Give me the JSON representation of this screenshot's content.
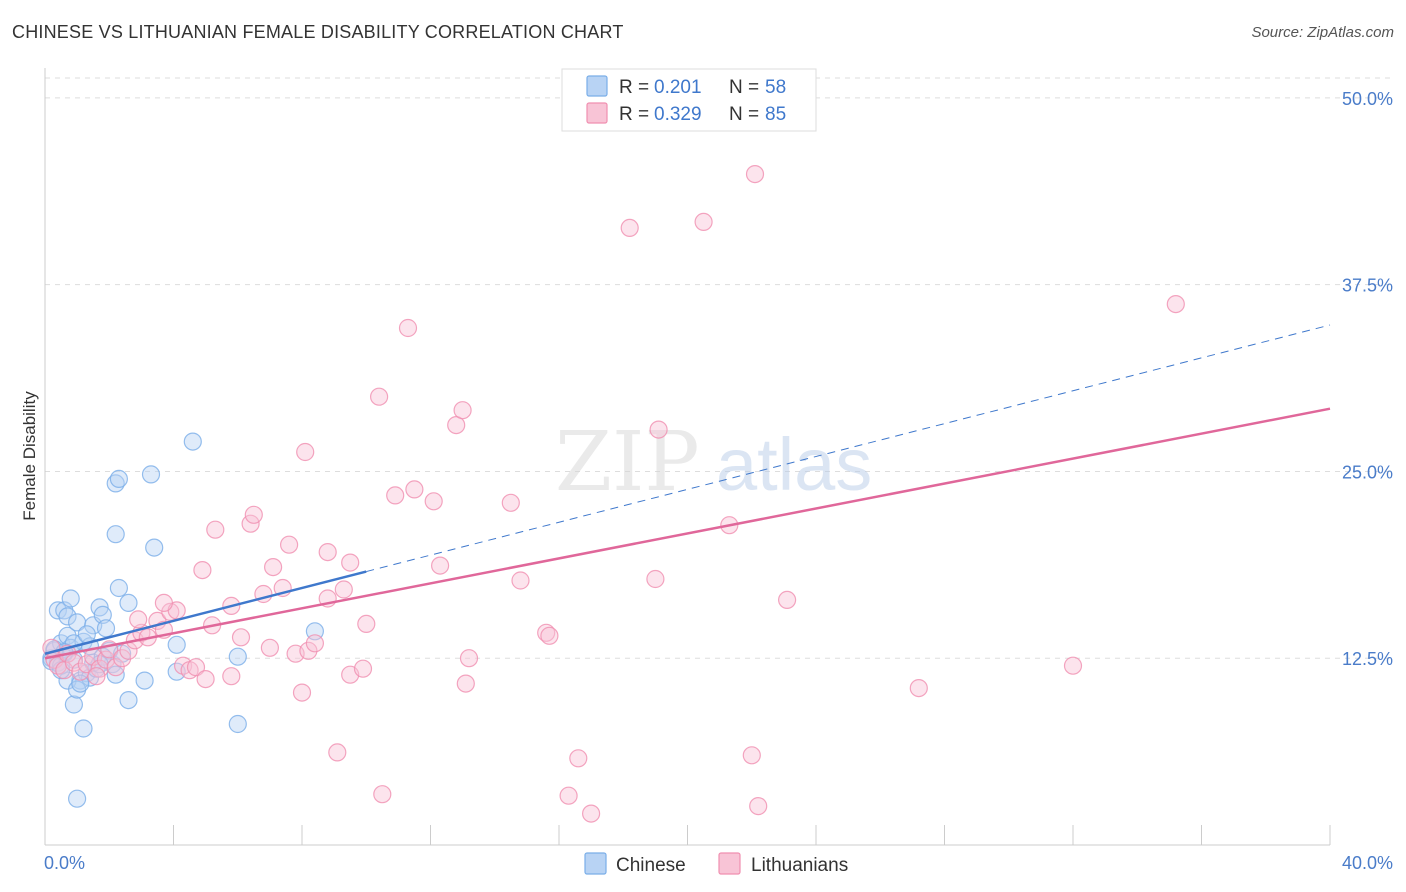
{
  "title": "CHINESE VS LITHUANIAN FEMALE DISABILITY CORRELATION CHART",
  "source": "Source: ZipAtlas.com",
  "watermark": {
    "zip": "ZIP",
    "atlas": "atlas"
  },
  "colors": {
    "chinese": "#7aaee8",
    "chinese_fill": "#b8d3f4",
    "chinese_line": "#3f78cc",
    "lithuanian": "#f08fb0",
    "lithuanian_fill": "#f8c4d6",
    "lithuanian_line": "#e0679a",
    "tick_text": "#4a7cc9",
    "grid": "#dddddd"
  },
  "legend": {
    "r_label": "R =",
    "n_label": "N =",
    "rows": [
      {
        "r": "0.201",
        "n": "58"
      },
      {
        "r": "0.329",
        "n": "85"
      }
    ]
  },
  "chart_data": {
    "type": "scatter",
    "xlabel": "",
    "ylabel": "Female Disability",
    "xlim": [
      0,
      40
    ],
    "ylim": [
      0,
      52
    ],
    "x_tick_labels": [
      "0.0%",
      "40.0%"
    ],
    "y_ticks": [
      12.5,
      25.0,
      37.5,
      50.0
    ],
    "y_tick_labels": [
      "12.5%",
      "25.0%",
      "37.5%",
      "50.0%"
    ],
    "grid": true,
    "legend_position": "top-center",
    "series": [
      {
        "name": "Chinese",
        "trend": {
          "x0": 0,
          "y0": 12.8,
          "x1": 10,
          "y1": 18.3,
          "dashed_to_x": 40,
          "dashed_to_y": 34.8
        },
        "points": [
          [
            0.2,
            12.5
          ],
          [
            0.3,
            13.0
          ],
          [
            0.4,
            12.2
          ],
          [
            0.5,
            13.5
          ],
          [
            0.6,
            12.8
          ],
          [
            0.7,
            14.0
          ],
          [
            0.8,
            13.2
          ],
          [
            0.9,
            12.4
          ],
          [
            0.4,
            15.7
          ],
          [
            0.6,
            15.7
          ],
          [
            0.7,
            15.3
          ],
          [
            0.8,
            16.5
          ],
          [
            1.0,
            14.9
          ],
          [
            1.2,
            13.6
          ],
          [
            1.4,
            13.3
          ],
          [
            1.5,
            14.7
          ],
          [
            1.7,
            15.9
          ],
          [
            1.8,
            15.4
          ],
          [
            1.9,
            14.5
          ],
          [
            2.0,
            13.0
          ],
          [
            2.3,
            17.2
          ],
          [
            2.6,
            16.2
          ],
          [
            1.1,
            11.0
          ],
          [
            1.3,
            11.5
          ],
          [
            1.4,
            11.2
          ],
          [
            1.6,
            11.8
          ],
          [
            2.1,
            12.1
          ],
          [
            2.2,
            11.4
          ],
          [
            0.7,
            11.0
          ],
          [
            0.9,
            9.4
          ],
          [
            1.2,
            7.8
          ],
          [
            1.0,
            10.4
          ],
          [
            1.1,
            10.8
          ],
          [
            2.6,
            9.7
          ],
          [
            3.1,
            11.0
          ],
          [
            4.1,
            11.6
          ],
          [
            2.2,
            24.2
          ],
          [
            2.3,
            24.5
          ],
          [
            3.3,
            24.8
          ],
          [
            4.6,
            27.0
          ],
          [
            2.2,
            20.8
          ],
          [
            3.4,
            19.9
          ],
          [
            4.1,
            13.4
          ],
          [
            6.0,
            8.1
          ],
          [
            6.0,
            12.6
          ],
          [
            8.4,
            14.3
          ],
          [
            1.0,
            3.1
          ],
          [
            0.3,
            13.1
          ],
          [
            0.2,
            12.3
          ],
          [
            0.5,
            12.0
          ],
          [
            1.5,
            12.2
          ],
          [
            1.8,
            12.6
          ],
          [
            0.9,
            13.5
          ],
          [
            1.3,
            14.1
          ],
          [
            2.4,
            12.8
          ],
          [
            0.6,
            12.9
          ],
          [
            0.5,
            11.7
          ],
          [
            1.7,
            12.1
          ]
        ]
      },
      {
        "name": "Lithuanians",
        "trend": {
          "x0": 0,
          "y0": 12.5,
          "x1": 40,
          "y1": 29.2
        },
        "points": [
          [
            0.2,
            13.2
          ],
          [
            0.3,
            12.4
          ],
          [
            0.4,
            12.0
          ],
          [
            0.6,
            11.7
          ],
          [
            0.7,
            12.8
          ],
          [
            0.9,
            12.2
          ],
          [
            1.1,
            11.6
          ],
          [
            1.3,
            12.1
          ],
          [
            1.5,
            12.6
          ],
          [
            1.7,
            11.8
          ],
          [
            1.9,
            12.4
          ],
          [
            2.0,
            13.1
          ],
          [
            2.2,
            11.9
          ],
          [
            2.4,
            12.5
          ],
          [
            2.6,
            13.0
          ],
          [
            2.8,
            13.7
          ],
          [
            3.0,
            14.2
          ],
          [
            3.2,
            13.9
          ],
          [
            3.5,
            15.0
          ],
          [
            3.7,
            14.4
          ],
          [
            3.9,
            15.6
          ],
          [
            4.1,
            15.7
          ],
          [
            4.3,
            12.0
          ],
          [
            4.5,
            11.7
          ],
          [
            4.7,
            11.9
          ],
          [
            5.0,
            11.1
          ],
          [
            5.2,
            14.7
          ],
          [
            5.3,
            21.1
          ],
          [
            5.8,
            11.3
          ],
          [
            5.8,
            16.0
          ],
          [
            6.1,
            13.9
          ],
          [
            6.4,
            21.5
          ],
          [
            6.5,
            22.1
          ],
          [
            6.8,
            16.8
          ],
          [
            7.0,
            13.2
          ],
          [
            7.1,
            18.6
          ],
          [
            7.4,
            17.2
          ],
          [
            7.6,
            20.1
          ],
          [
            7.8,
            12.8
          ],
          [
            8.0,
            10.2
          ],
          [
            8.1,
            26.3
          ],
          [
            8.2,
            13.0
          ],
          [
            8.4,
            13.5
          ],
          [
            8.8,
            16.5
          ],
          [
            8.8,
            19.6
          ],
          [
            9.1,
            6.2
          ],
          [
            9.3,
            17.1
          ],
          [
            9.5,
            18.9
          ],
          [
            9.5,
            11.4
          ],
          [
            9.9,
            11.8
          ],
          [
            10.0,
            14.8
          ],
          [
            10.4,
            30.0
          ],
          [
            10.9,
            23.4
          ],
          [
            10.5,
            3.4
          ],
          [
            11.3,
            34.6
          ],
          [
            11.5,
            23.8
          ],
          [
            12.1,
            23.0
          ],
          [
            12.3,
            18.7
          ],
          [
            12.8,
            28.1
          ],
          [
            13.0,
            29.1
          ],
          [
            13.1,
            10.8
          ],
          [
            13.2,
            12.5
          ],
          [
            14.5,
            22.9
          ],
          [
            14.8,
            17.7
          ],
          [
            15.6,
            14.2
          ],
          [
            15.7,
            14.0
          ],
          [
            16.3,
            3.3
          ],
          [
            16.6,
            5.8
          ],
          [
            17.0,
            2.1
          ],
          [
            18.2,
            41.3
          ],
          [
            19.0,
            17.8
          ],
          [
            19.1,
            27.8
          ],
          [
            20.5,
            41.7
          ],
          [
            21.3,
            21.4
          ],
          [
            22.1,
            44.9
          ],
          [
            22.0,
            6.0
          ],
          [
            22.2,
            2.6
          ],
          [
            23.1,
            16.4
          ],
          [
            27.2,
            10.5
          ],
          [
            32.0,
            12.0
          ],
          [
            35.2,
            36.2
          ],
          [
            3.7,
            16.2
          ],
          [
            4.9,
            18.4
          ],
          [
            2.9,
            15.1
          ],
          [
            1.6,
            11.3
          ]
        ]
      }
    ]
  }
}
